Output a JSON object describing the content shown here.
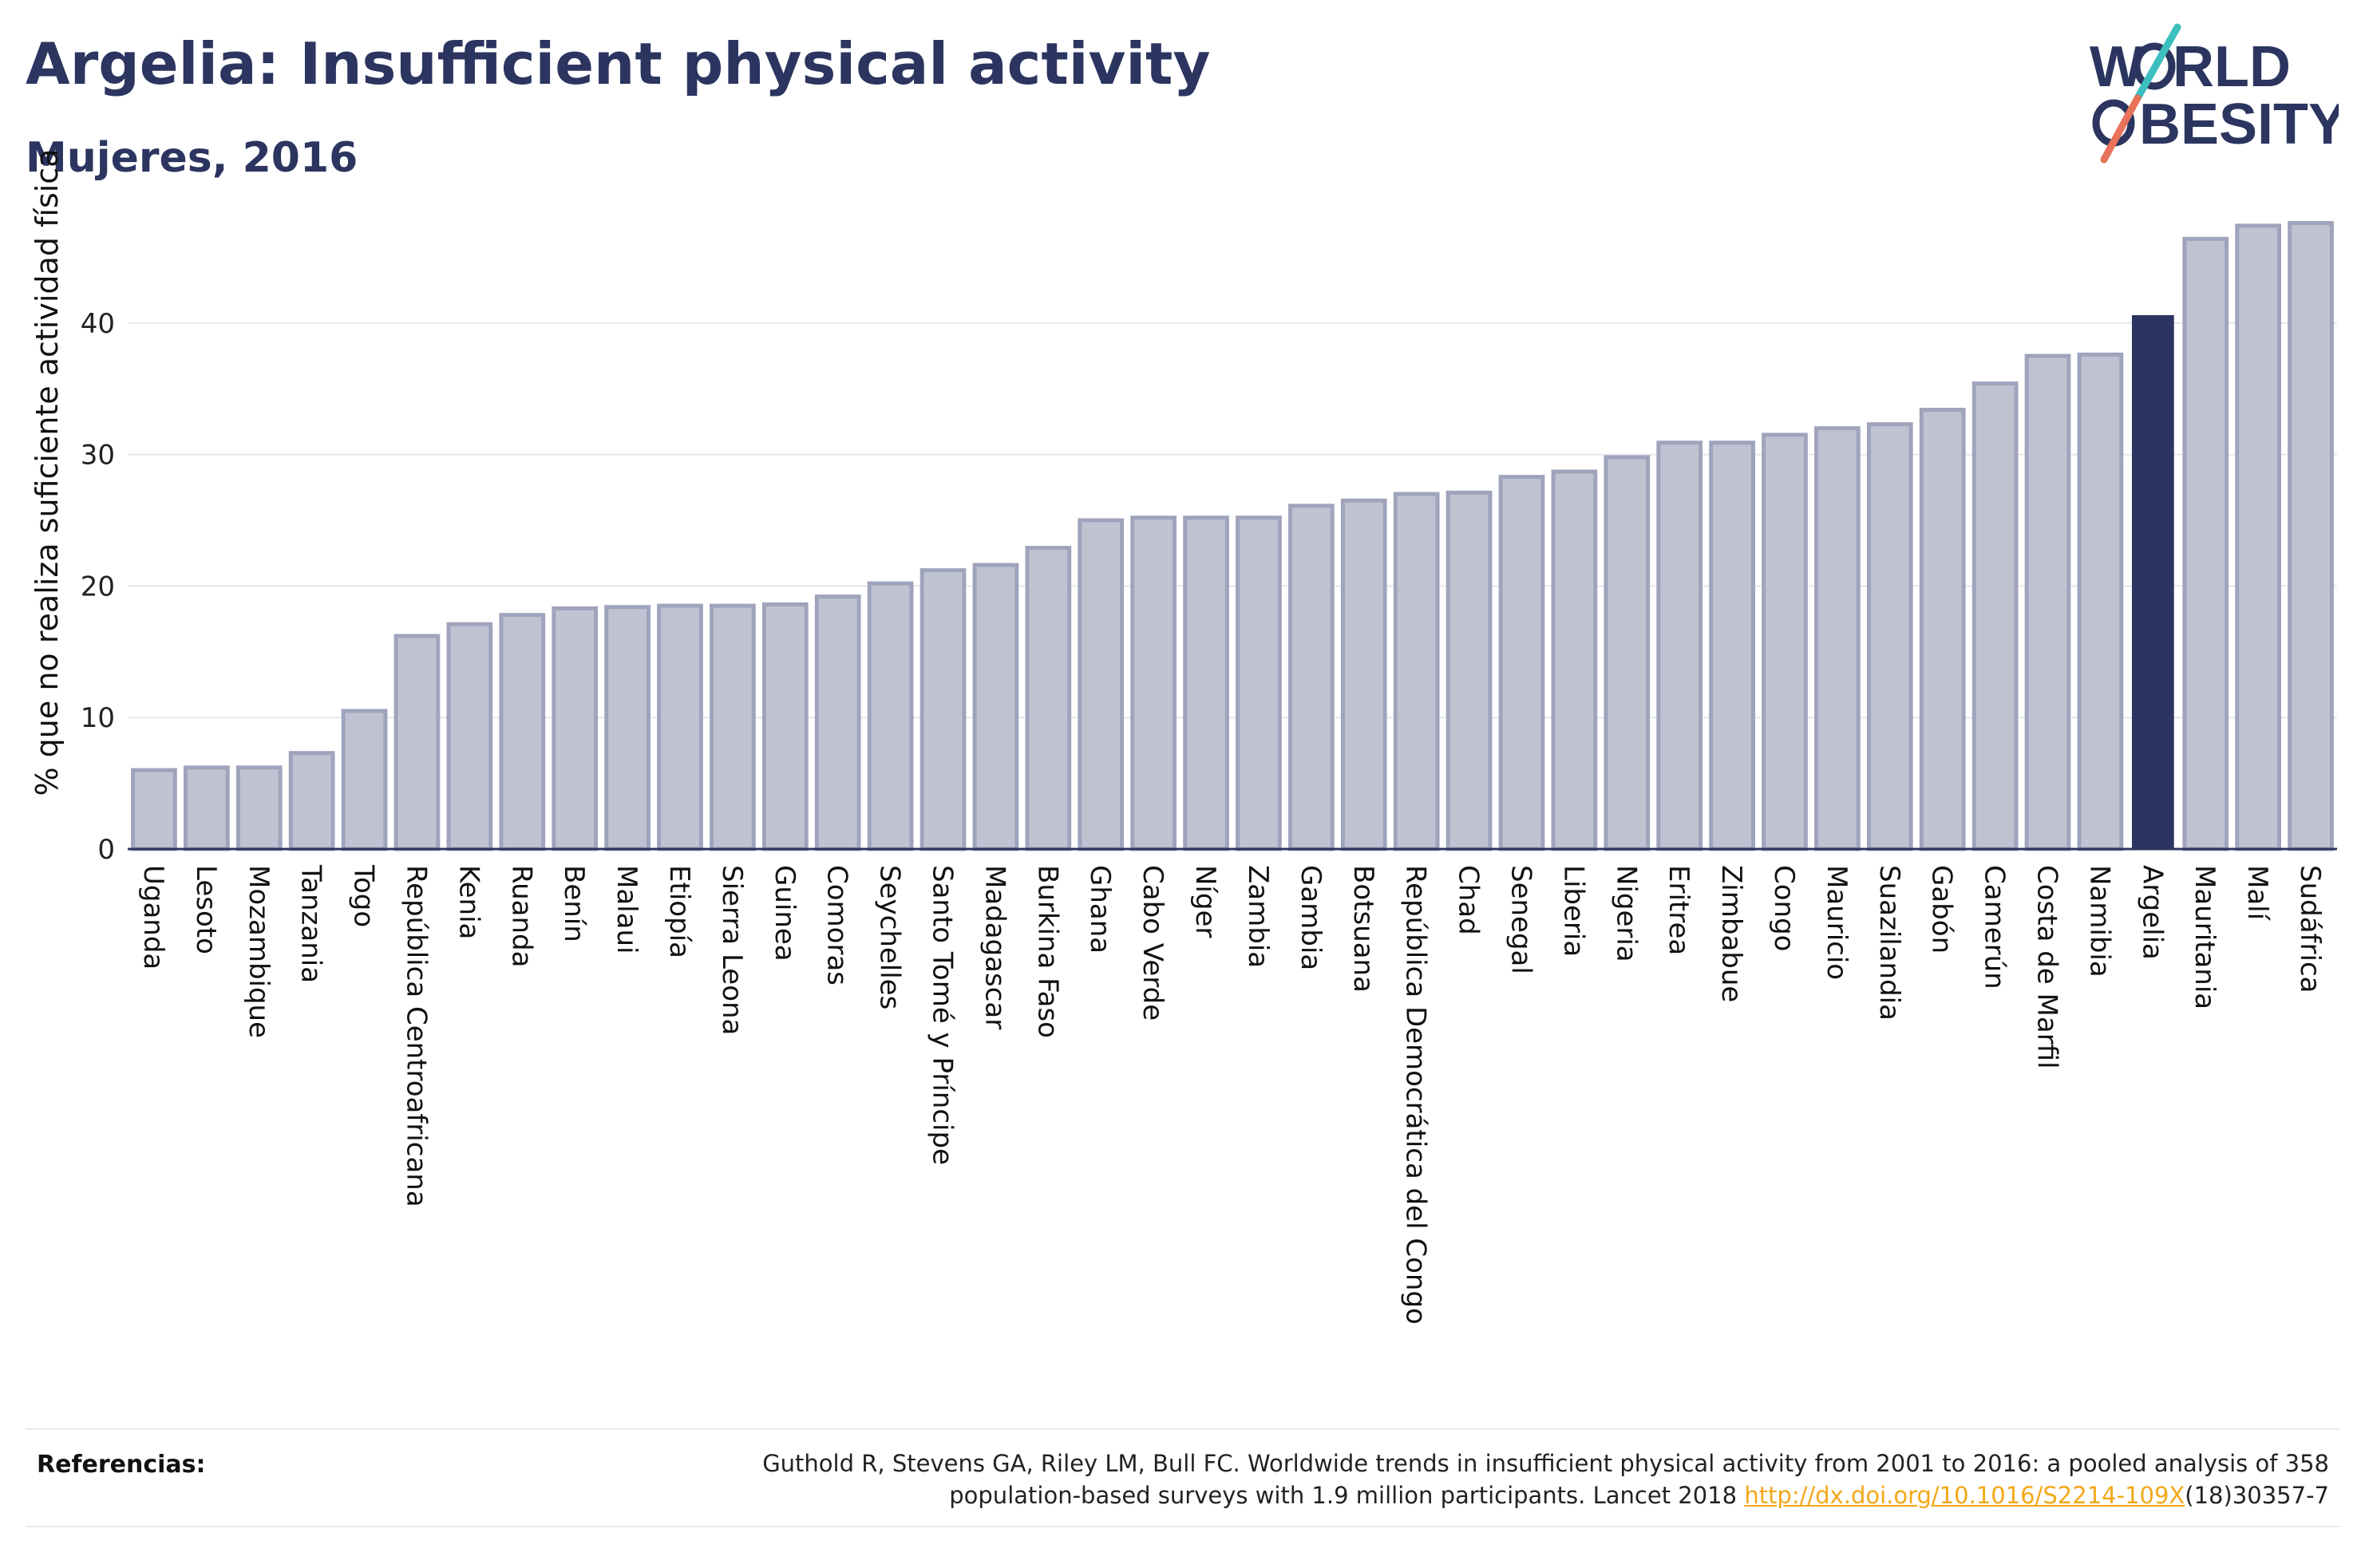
{
  "header": {
    "title": "Argelia: Insufficient physical activity",
    "subtitle": "Mujeres, 2016"
  },
  "logo": {
    "line1_pre": "W",
    "line1_post": "RLD",
    "line2_post": "BESITY",
    "colors": {
      "text": "#2b3560",
      "slash_top": "#3cbfbf",
      "slash_bottom": "#e8735a"
    }
  },
  "colors": {
    "bar": "#bfc3d1",
    "bar_stroke": "#9fa4bc",
    "highlight": "#2b3560",
    "grid": "#e6e7ec",
    "axis": "#2b3560"
  },
  "chart_data": {
    "type": "bar",
    "ylabel": "% que no realiza suficiente actividad física",
    "ylim": [
      0,
      50
    ],
    "yticks": [
      0,
      10,
      20,
      30,
      40
    ],
    "grid": true,
    "highlight": "Argelia",
    "categories": [
      "Uganda",
      "Lesoto",
      "Mozambique",
      "Tanzania",
      "Togo",
      "República Centroafricana",
      "Kenia",
      "Ruanda",
      "Benín",
      "Malaui",
      "Etiopía",
      "Sierra Leona",
      "Guinea",
      "Comoras",
      "Seychelles",
      "Santo Tomé y Príncipe",
      "Madagascar",
      "Burkina Faso",
      "Ghana",
      "Cabo Verde",
      "Níger",
      "Zambia",
      "Gambia",
      "Botsuana",
      "República Democrática del Congo",
      "Chad",
      "Senegal",
      "Liberia",
      "Nigeria",
      "Eritrea",
      "Zimbabue",
      "Congo",
      "Mauricio",
      "Suazilandia",
      "Gabón",
      "Camerún",
      "Costa de Marfil",
      "Namibia",
      "Argelia",
      "Mauritania",
      "Malí",
      "Sudáfrica"
    ],
    "values": [
      6.0,
      6.2,
      6.2,
      7.3,
      10.5,
      16.2,
      17.1,
      17.8,
      18.3,
      18.4,
      18.5,
      18.5,
      18.6,
      19.2,
      20.2,
      21.2,
      21.6,
      22.9,
      25.0,
      25.2,
      25.2,
      25.2,
      26.1,
      26.5,
      27.0,
      27.1,
      28.3,
      28.7,
      29.8,
      30.9,
      30.9,
      31.5,
      32.0,
      32.3,
      33.4,
      35.4,
      37.5,
      37.6,
      40.6,
      46.4,
      47.4,
      47.6
    ]
  },
  "references": {
    "label": "Referencias:",
    "text_line1": "Guthold R, Stevens GA, Riley LM, Bull FC. Worldwide trends in insufficient physical activity from 2001 to 2016: a pooled analysis of 358",
    "text_line2": "population-based surveys with 1.9 million participants. Lancet 2018 ",
    "link": "http://dx.doi.org/10.1016/S2214-109X",
    "suffix": "(18)30357-7"
  }
}
